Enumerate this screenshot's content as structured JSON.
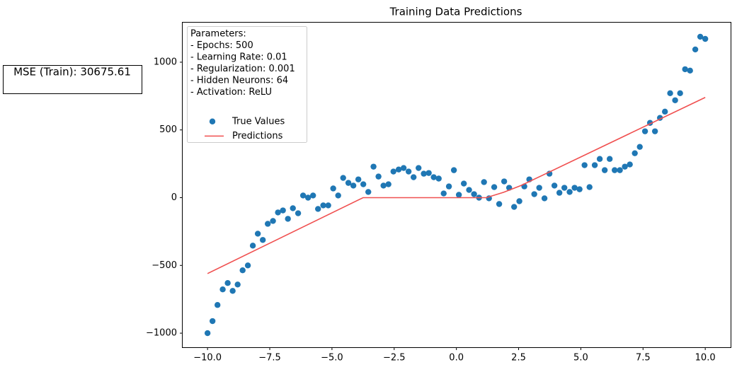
{
  "chart_data": {
    "type": "scatter",
    "title": "Training Data Predictions",
    "annotation": "MSE (Train): 30675.61",
    "legend_title": [
      "Parameters:",
      "- Epochs: 500",
      "- Learning Rate: 0.01",
      "- Regularization: 0.001",
      "- Hidden Neurons: 64",
      "- Activation: ReLU"
    ],
    "legend_position": "upper left",
    "grid": false,
    "xlim": [
      -11,
      11.02
    ],
    "ylim": [
      -1104,
      1292
    ],
    "xticks": [
      {
        "value": -10,
        "label": "−10.0"
      },
      {
        "value": -7.5,
        "label": "−7.5"
      },
      {
        "value": -5,
        "label": "−5.0"
      },
      {
        "value": -2.5,
        "label": "−2.5"
      },
      {
        "value": 0,
        "label": "0.0"
      },
      {
        "value": 2.5,
        "label": "2.5"
      },
      {
        "value": 5,
        "label": "5.0"
      },
      {
        "value": 7.5,
        "label": "7.5"
      },
      {
        "value": 10,
        "label": "10.0"
      }
    ],
    "yticks": [
      {
        "value": -1000,
        "label": "−1000"
      },
      {
        "value": -500,
        "label": "−500"
      },
      0,
      500,
      1000
    ],
    "series": [
      {
        "name": "True Values",
        "kind": "scatter",
        "color": "#1f77b4",
        "x": [
          -10,
          -9.8,
          -9.6,
          -9.39,
          -9.19,
          -8.99,
          -8.79,
          -8.59,
          -8.38,
          -8.18,
          -7.98,
          -7.78,
          -7.58,
          -7.37,
          -7.17,
          -6.97,
          -6.77,
          -6.57,
          -6.36,
          -6.16,
          -5.96,
          -5.76,
          -5.56,
          -5.35,
          -5.15,
          -4.95,
          -4.75,
          -4.55,
          -4.34,
          -4.14,
          -3.94,
          -3.74,
          -3.54,
          -3.33,
          -3.13,
          -2.93,
          -2.73,
          -2.53,
          -2.32,
          -2.12,
          -1.92,
          -1.72,
          -1.52,
          -1.31,
          -1.11,
          -0.91,
          -0.71,
          -0.51,
          -0.3,
          -0.1,
          0.1,
          0.3,
          0.51,
          0.71,
          0.91,
          1.11,
          1.31,
          1.52,
          1.72,
          1.92,
          2.12,
          2.32,
          2.53,
          2.73,
          2.93,
          3.13,
          3.33,
          3.54,
          3.74,
          3.94,
          4.14,
          4.34,
          4.55,
          4.75,
          4.95,
          5.15,
          5.35,
          5.56,
          5.76,
          5.96,
          6.16,
          6.36,
          6.57,
          6.77,
          6.97,
          7.17,
          7.37,
          7.58,
          7.78,
          7.98,
          8.18,
          8.38,
          8.59,
          8.79,
          8.99,
          9.19,
          9.39,
          9.6,
          9.8,
          10
        ],
        "values": [
          -1000,
          -911,
          -792,
          -677,
          -630,
          -688,
          -641,
          -536,
          -500,
          -354,
          -266,
          -312,
          -193,
          -172,
          -109,
          -94,
          -156,
          -78,
          -115,
          16,
          0,
          16,
          -83,
          -57,
          -57,
          68,
          16,
          146,
          109,
          89,
          135,
          99,
          42,
          229,
          156,
          89,
          99,
          193,
          208,
          219,
          193,
          151,
          219,
          177,
          182,
          151,
          141,
          31,
          83,
          203,
          21,
          104,
          57,
          26,
          0,
          115,
          -5,
          78,
          -47,
          120,
          73,
          -68,
          -26,
          83,
          135,
          26,
          73,
          -5,
          177,
          89,
          36,
          73,
          42,
          73,
          62,
          240,
          78,
          240,
          286,
          203,
          286,
          203,
          203,
          229,
          245,
          328,
          375,
          490,
          552,
          490,
          589,
          635,
          771,
          719,
          771,
          948,
          938,
          1094,
          1188,
          1172
        ]
      },
      {
        "name": "Predictions",
        "kind": "line",
        "color": "#f05050",
        "x": [
          -10,
          -3.75,
          1.2,
          1.9,
          2.6,
          10
        ],
        "values": [
          -560,
          0,
          0,
          40,
          90,
          740
        ]
      }
    ]
  }
}
